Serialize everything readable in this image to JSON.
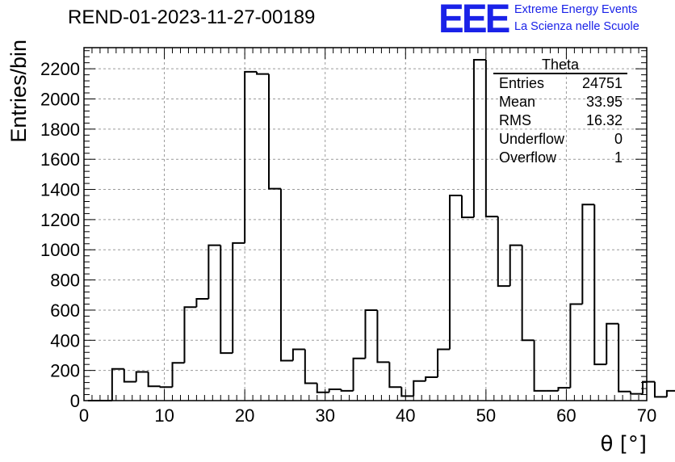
{
  "header": {
    "run_title": "REND-01-2023-11-27-00189",
    "logo": "EEE",
    "org_line1": "Extreme Energy Events",
    "org_line2": "La Scienza nelle Scuole"
  },
  "stats": {
    "name": "Theta",
    "rows": [
      {
        "label": "Entries",
        "value": "24751"
      },
      {
        "label": "Mean",
        "value": "33.95"
      },
      {
        "label": "RMS",
        "value": "16.32"
      },
      {
        "label": "Underflow",
        "value": "0"
      },
      {
        "label": "Overflow",
        "value": "1"
      }
    ]
  },
  "colors": {
    "line": "#000000",
    "grid": "#9a9a9a",
    "logo": "#1a22e8"
  },
  "chart_data": {
    "type": "histogram",
    "xlabel": "θ [°]",
    "ylabel": "Entries/bin",
    "xlim": [
      0,
      70
    ],
    "ylim": [
      0,
      2340
    ],
    "grid": true,
    "bin_width": 1.5,
    "x_start": 0.5,
    "xticks": [
      0,
      10,
      20,
      30,
      40,
      50,
      60,
      70
    ],
    "yticks": [
      0,
      200,
      400,
      600,
      800,
      1000,
      1200,
      1400,
      1600,
      1800,
      2000,
      2200
    ],
    "values": [
      0,
      0,
      210,
      125,
      190,
      95,
      90,
      250,
      620,
      675,
      1030,
      315,
      1045,
      2180,
      2165,
      1405,
      265,
      340,
      115,
      55,
      75,
      65,
      280,
      600,
      255,
      90,
      30,
      130,
      155,
      340,
      1360,
      1215,
      2260,
      1220,
      760,
      1030,
      400,
      65,
      65,
      85,
      640,
      1300,
      240,
      510,
      60,
      45,
      125,
      25,
      65
    ]
  }
}
